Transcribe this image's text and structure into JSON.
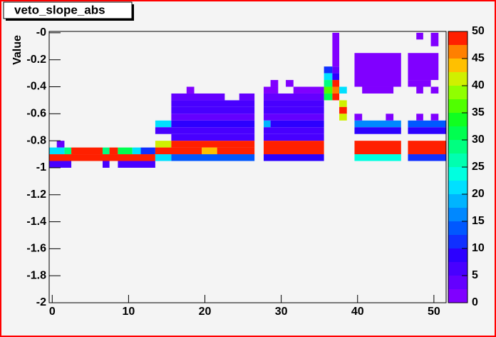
{
  "chart_data": {
    "type": "heatmap",
    "title": "veto_slope_abs",
    "ylabel": "Value",
    "xlim": [
      -0.4,
      51.6
    ],
    "ylim": [
      -2,
      0.01
    ],
    "xticks": [
      0,
      10,
      20,
      30,
      40,
      50
    ],
    "yticks": [
      -2,
      -1.8,
      -1.6,
      -1.4,
      -1.2,
      -1,
      -0.8,
      -0.6,
      -0.4,
      -0.2,
      {
        "value": 0,
        "label": "-0"
      }
    ],
    "zlim": [
      0,
      50
    ],
    "zticks": [
      0,
      5,
      10,
      15,
      20,
      25,
      30,
      35,
      40,
      45,
      50
    ],
    "palette": [
      "#8000ff",
      "#6400ff",
      "#4800ff",
      "#2c00ff",
      "#1030ff",
      "#0058ff",
      "#0088ff",
      "#00b4ff",
      "#00e0ff",
      "#00ffe0",
      "#00ffb0",
      "#00ff80",
      "#00ff50",
      "#10ff20",
      "#50ff00",
      "#90ff00",
      "#d0f000",
      "#ffc000",
      "#ff8000",
      "#ff2000"
    ],
    "cells": [
      [
        0.6,
        1.6,
        -0.85,
        -0.8,
        3
      ],
      [
        -0.4,
        1.6,
        -0.9,
        -0.85,
        22
      ],
      [
        1.6,
        2.5,
        -0.9,
        -0.85,
        28
      ],
      [
        2.5,
        6.6,
        -0.9,
        -0.85,
        50
      ],
      [
        6.6,
        7.5,
        -0.9,
        -0.85,
        28
      ],
      [
        7.5,
        8.6,
        -0.9,
        -0.85,
        48
      ],
      [
        8.6,
        10.5,
        -0.9,
        -0.85,
        30
      ],
      [
        10.5,
        11.6,
        -0.9,
        -0.85,
        20
      ],
      [
        11.6,
        13.5,
        -0.9,
        -0.85,
        12
      ],
      [
        -0.4,
        13.5,
        -0.95,
        -0.9,
        48
      ],
      [
        -0.4,
        2.5,
        -1,
        -0.95,
        5
      ],
      [
        6.6,
        7.5,
        -1,
        -0.95,
        5
      ],
      [
        8.6,
        13.5,
        -1,
        -0.95,
        5
      ],
      [
        17.6,
        18.6,
        -0.45,
        -0.4,
        2
      ],
      [
        15.6,
        22.6,
        -0.5,
        -0.45,
        3
      ],
      [
        24.5,
        26.5,
        -0.5,
        -0.45,
        3
      ],
      [
        15.6,
        26.5,
        -0.55,
        -0.5,
        7
      ],
      [
        15.6,
        26.5,
        -0.6,
        -0.55,
        6
      ],
      [
        15.6,
        26.5,
        -0.65,
        -0.6,
        3
      ],
      [
        13.5,
        15.6,
        -0.7,
        -0.65,
        20
      ],
      [
        15.6,
        26.5,
        -0.7,
        -0.65,
        8
      ],
      [
        13.5,
        26.5,
        -0.75,
        -0.7,
        6
      ],
      [
        15.6,
        26.5,
        -0.8,
        -0.75,
        6
      ],
      [
        13.5,
        15.6,
        -0.85,
        -0.8,
        42
      ],
      [
        15.6,
        26.5,
        -0.85,
        -0.8,
        48
      ],
      [
        13.5,
        19.6,
        -0.9,
        -0.85,
        50
      ],
      [
        19.6,
        21.6,
        -0.9,
        -0.85,
        44
      ],
      [
        21.6,
        26.5,
        -0.9,
        -0.85,
        50
      ],
      [
        13.5,
        15.6,
        -0.95,
        -0.9,
        20
      ],
      [
        15.6,
        26.5,
        -0.95,
        -0.9,
        14
      ],
      [
        28.6,
        29.6,
        -0.4,
        -0.35,
        2
      ],
      [
        30.6,
        31.6,
        -0.4,
        -0.35,
        2
      ],
      [
        27.7,
        29.6,
        -0.45,
        -0.4,
        2
      ],
      [
        31.6,
        35.6,
        -0.45,
        -0.4,
        2
      ],
      [
        27.7,
        35.6,
        -0.5,
        -0.45,
        3
      ],
      [
        27.7,
        35.6,
        -0.55,
        -0.5,
        7
      ],
      [
        27.7,
        35.6,
        -0.6,
        -0.55,
        6
      ],
      [
        27.7,
        35.6,
        -0.65,
        -0.6,
        3
      ],
      [
        27.7,
        28.6,
        -0.7,
        -0.65,
        18
      ],
      [
        28.6,
        35.6,
        -0.7,
        -0.65,
        8
      ],
      [
        27.7,
        35.6,
        -0.75,
        -0.7,
        6
      ],
      [
        27.7,
        35.6,
        -0.8,
        -0.75,
        6
      ],
      [
        27.7,
        35.6,
        -0.9,
        -0.8,
        50
      ],
      [
        27.7,
        35.6,
        -0.95,
        -0.9,
        8
      ],
      [
        36.7,
        37.6,
        -0.25,
        0,
        2
      ],
      [
        35.6,
        36.7,
        -0.3,
        -0.25,
        10
      ],
      [
        36.7,
        37.6,
        -0.3,
        -0.25,
        3
      ],
      [
        35.6,
        36.7,
        -0.35,
        -0.3,
        20
      ],
      [
        36.7,
        37.6,
        -0.35,
        -0.3,
        8
      ],
      [
        35.6,
        36.7,
        -0.4,
        -0.35,
        28
      ],
      [
        36.7,
        37.6,
        -0.4,
        -0.35,
        48
      ],
      [
        35.6,
        36.7,
        -0.45,
        -0.4,
        36
      ],
      [
        36.7,
        37.6,
        -0.45,
        -0.4,
        47
      ],
      [
        37.6,
        38.6,
        -0.45,
        -0.4,
        20
      ],
      [
        35.6,
        36.7,
        -0.5,
        -0.45,
        30
      ],
      [
        36.7,
        37.6,
        -0.5,
        -0.45,
        50
      ],
      [
        37.6,
        38.6,
        -0.55,
        -0.5,
        42
      ],
      [
        37.6,
        38.6,
        -0.6,
        -0.55,
        48
      ],
      [
        37.6,
        38.6,
        -0.65,
        -0.6,
        42
      ],
      [
        39.6,
        45.7,
        -0.4,
        -0.15,
        2
      ],
      [
        40.6,
        44.7,
        -0.45,
        -0.4,
        2
      ],
      [
        39.6,
        40.6,
        -0.65,
        -0.6,
        2
      ],
      [
        43.7,
        44.7,
        -0.65,
        -0.6,
        2
      ],
      [
        39.6,
        45.7,
        -0.7,
        -0.65,
        15
      ],
      [
        39.6,
        45.7,
        -0.75,
        -0.7,
        8
      ],
      [
        39.6,
        45.7,
        -0.9,
        -0.8,
        50
      ],
      [
        39.6,
        45.7,
        -0.95,
        -0.9,
        24
      ],
      [
        47.7,
        48.6,
        -0.05,
        0,
        2
      ],
      [
        49.6,
        50.6,
        -0.1,
        0,
        2
      ],
      [
        46.6,
        50.6,
        -0.35,
        -0.15,
        2
      ],
      [
        46.6,
        49.6,
        -0.4,
        -0.35,
        2
      ],
      [
        47.7,
        48.6,
        -0.45,
        -0.4,
        2
      ],
      [
        49.6,
        50.6,
        -0.45,
        -0.4,
        2
      ],
      [
        47.7,
        48.6,
        -0.65,
        -0.6,
        2
      ],
      [
        49.6,
        50.6,
        -0.65,
        -0.6,
        2
      ],
      [
        46.6,
        51.6,
        -0.7,
        -0.65,
        14
      ],
      [
        46.6,
        51.6,
        -0.75,
        -0.7,
        8
      ],
      [
        46.6,
        51.6,
        -0.9,
        -0.8,
        50
      ],
      [
        46.6,
        51.6,
        -0.95,
        -0.9,
        12
      ]
    ]
  }
}
